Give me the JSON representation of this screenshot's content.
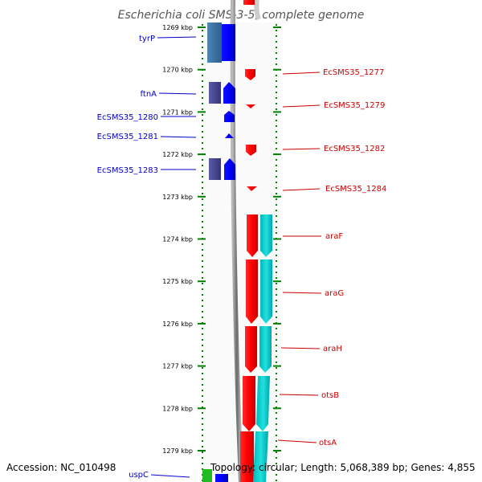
{
  "title": "Escherichia coli SMS-3-5, complete genome",
  "ruler": {
    "unit": "kbp",
    "ticks": [
      {
        "kbp": 1269,
        "label": "1269 kbp"
      },
      {
        "kbp": 1270,
        "label": "1270 kbp"
      },
      {
        "kbp": 1271,
        "label": "1271 kbp"
      },
      {
        "kbp": 1272,
        "label": "1272 kbp"
      },
      {
        "kbp": 1273,
        "label": "1273 kbp"
      },
      {
        "kbp": 1274,
        "label": "1274 kbp"
      },
      {
        "kbp": 1275,
        "label": "1275 kbp"
      },
      {
        "kbp": 1276,
        "label": "1276 kbp"
      },
      {
        "kbp": 1277,
        "label": "1277 kbp"
      },
      {
        "kbp": 1278,
        "label": "1278 kbp"
      },
      {
        "kbp": 1279,
        "label": "1279 kbp"
      }
    ]
  },
  "genes_left": [
    {
      "name": "tyrP",
      "id": "gene-label-tyrP"
    },
    {
      "name": "ftnA",
      "id": "gene-label-ftnA"
    },
    {
      "name": "EcSMS35_1280",
      "id": "gene-label-EcSMS35_1280"
    },
    {
      "name": "EcSMS35_1281",
      "id": "gene-label-EcSMS35_1281"
    },
    {
      "name": "EcSMS35_1283",
      "id": "gene-label-EcSMS35_1283"
    },
    {
      "name": "uspC",
      "id": "gene-label-uspC"
    }
  ],
  "genes_right": [
    {
      "name": "EcSMS35_1277",
      "id": "gene-label-EcSMS35_1277"
    },
    {
      "name": "EcSMS35_1279",
      "id": "gene-label-EcSMS35_1279"
    },
    {
      "name": "EcSMS35_1282",
      "id": "gene-label-EcSMS35_1282"
    },
    {
      "name": "EcSMS35_1284",
      "id": "gene-label-EcSMS35_1284"
    },
    {
      "name": "araF",
      "id": "gene-label-araF"
    },
    {
      "name": "araG",
      "id": "gene-label-araG"
    },
    {
      "name": "araH",
      "id": "gene-label-araH"
    },
    {
      "name": "otsB",
      "id": "gene-label-otsB"
    },
    {
      "name": "otsA",
      "id": "gene-label-otsA"
    }
  ],
  "footer": {
    "accession": "Accession: NC_010498",
    "summary": "Topology: circular; Length: 5,068,389 bp; Genes: 4,855"
  },
  "colors": {
    "forward_strand": "#0000ff",
    "reverse_strand": "#ff0000",
    "forward_cog": "#4a4a9a",
    "reverse_cog": "#00c8c8",
    "backbone": "#888888",
    "ruler": "#008000",
    "label_forward": "#0000cc",
    "label_reverse": "#cc0000"
  }
}
